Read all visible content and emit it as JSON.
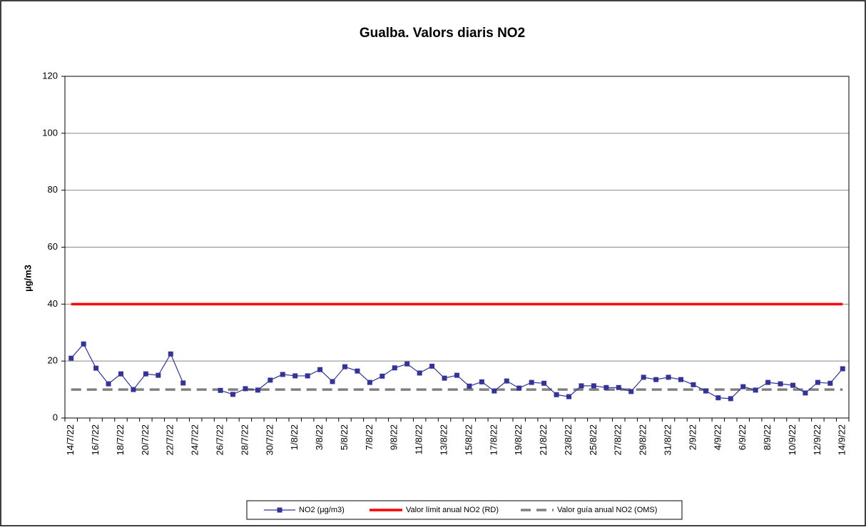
{
  "chart_data": {
    "type": "line",
    "title": "Gualba. Valors diaris NO2",
    "y_label": "µg/m3",
    "categories": [
      "14/7/22",
      null,
      "16/7/22",
      null,
      "18/7/22",
      null,
      "20/7/22",
      null,
      "22/7/22",
      null,
      "24/7/22",
      null,
      "26/7/22",
      null,
      "28/7/22",
      null,
      "30/7/22",
      null,
      "1/8/22",
      null,
      "3/8/22",
      null,
      "5/8/22",
      null,
      "7/8/22",
      null,
      "9/8/22",
      null,
      "11/8/22",
      null,
      "13/8/22",
      null,
      "15/8/22",
      null,
      "17/8/22",
      null,
      "19/8/22",
      null,
      "21/8/22",
      null,
      "23/8/22",
      null,
      "25/8/22",
      null,
      "27/8/22",
      null,
      "29/8/22",
      null,
      "31/8/22",
      null,
      "2/9/22",
      null,
      "4/9/22",
      null,
      "6/9/22",
      null,
      "8/9/22",
      null,
      "10/9/22",
      null,
      "12/9/22",
      null,
      "14/9/22"
    ],
    "series": [
      {
        "name": "NO2 (µg/m3)",
        "color": "#333399",
        "marker": "square",
        "values": [
          21,
          26,
          17.5,
          12,
          15.5,
          10,
          15.5,
          15,
          22.5,
          12.3,
          null,
          null,
          9.7,
          8.3,
          10.3,
          9.8,
          13.3,
          15.3,
          14.8,
          14.8,
          17,
          12.8,
          18,
          16.5,
          12.5,
          14.7,
          17.6,
          19,
          15.8,
          18.2,
          14,
          15,
          11.2,
          12.7,
          9.5,
          13,
          10.5,
          12.5,
          12.2,
          8.2,
          7.5,
          11.3,
          11.3,
          10.7,
          10.7,
          9.3,
          14.3,
          13.5,
          14.3,
          13.5,
          11.7,
          9.5,
          7.1,
          6.8,
          11,
          9.8,
          12.5,
          12,
          11.5,
          8.8,
          12.5,
          12.2,
          17.3
        ]
      },
      {
        "name": "Valor límit anual NO2 (RD)",
        "color": "#ff0000",
        "values": [
          40,
          40,
          40,
          40,
          40,
          40,
          40,
          40,
          40,
          40,
          40,
          40,
          40,
          40,
          40,
          40,
          40,
          40,
          40,
          40,
          40,
          40,
          40,
          40,
          40,
          40,
          40,
          40,
          40,
          40,
          40,
          40,
          40,
          40,
          40,
          40,
          40,
          40,
          40,
          40,
          40,
          40,
          40,
          40,
          40,
          40,
          40,
          40,
          40,
          40,
          40,
          40,
          40,
          40,
          40,
          40,
          40,
          40,
          40,
          40,
          40,
          40,
          40
        ]
      },
      {
        "name": "Valor guía anual NO2 (OMS)",
        "color": "#808080",
        "dashed": true,
        "values": [
          10,
          10,
          10,
          10,
          10,
          10,
          10,
          10,
          10,
          10,
          10,
          10,
          10,
          10,
          10,
          10,
          10,
          10,
          10,
          10,
          10,
          10,
          10,
          10,
          10,
          10,
          10,
          10,
          10,
          10,
          10,
          10,
          10,
          10,
          10,
          10,
          10,
          10,
          10,
          10,
          10,
          10,
          10,
          10,
          10,
          10,
          10,
          10,
          10,
          10,
          10,
          10,
          10,
          10,
          10,
          10,
          10,
          10,
          10,
          10,
          10,
          10,
          10
        ]
      }
    ],
    "ylim": [
      0,
      120
    ],
    "yticks": [
      0,
      20,
      40,
      60,
      80,
      100,
      120
    ],
    "grid": true
  }
}
